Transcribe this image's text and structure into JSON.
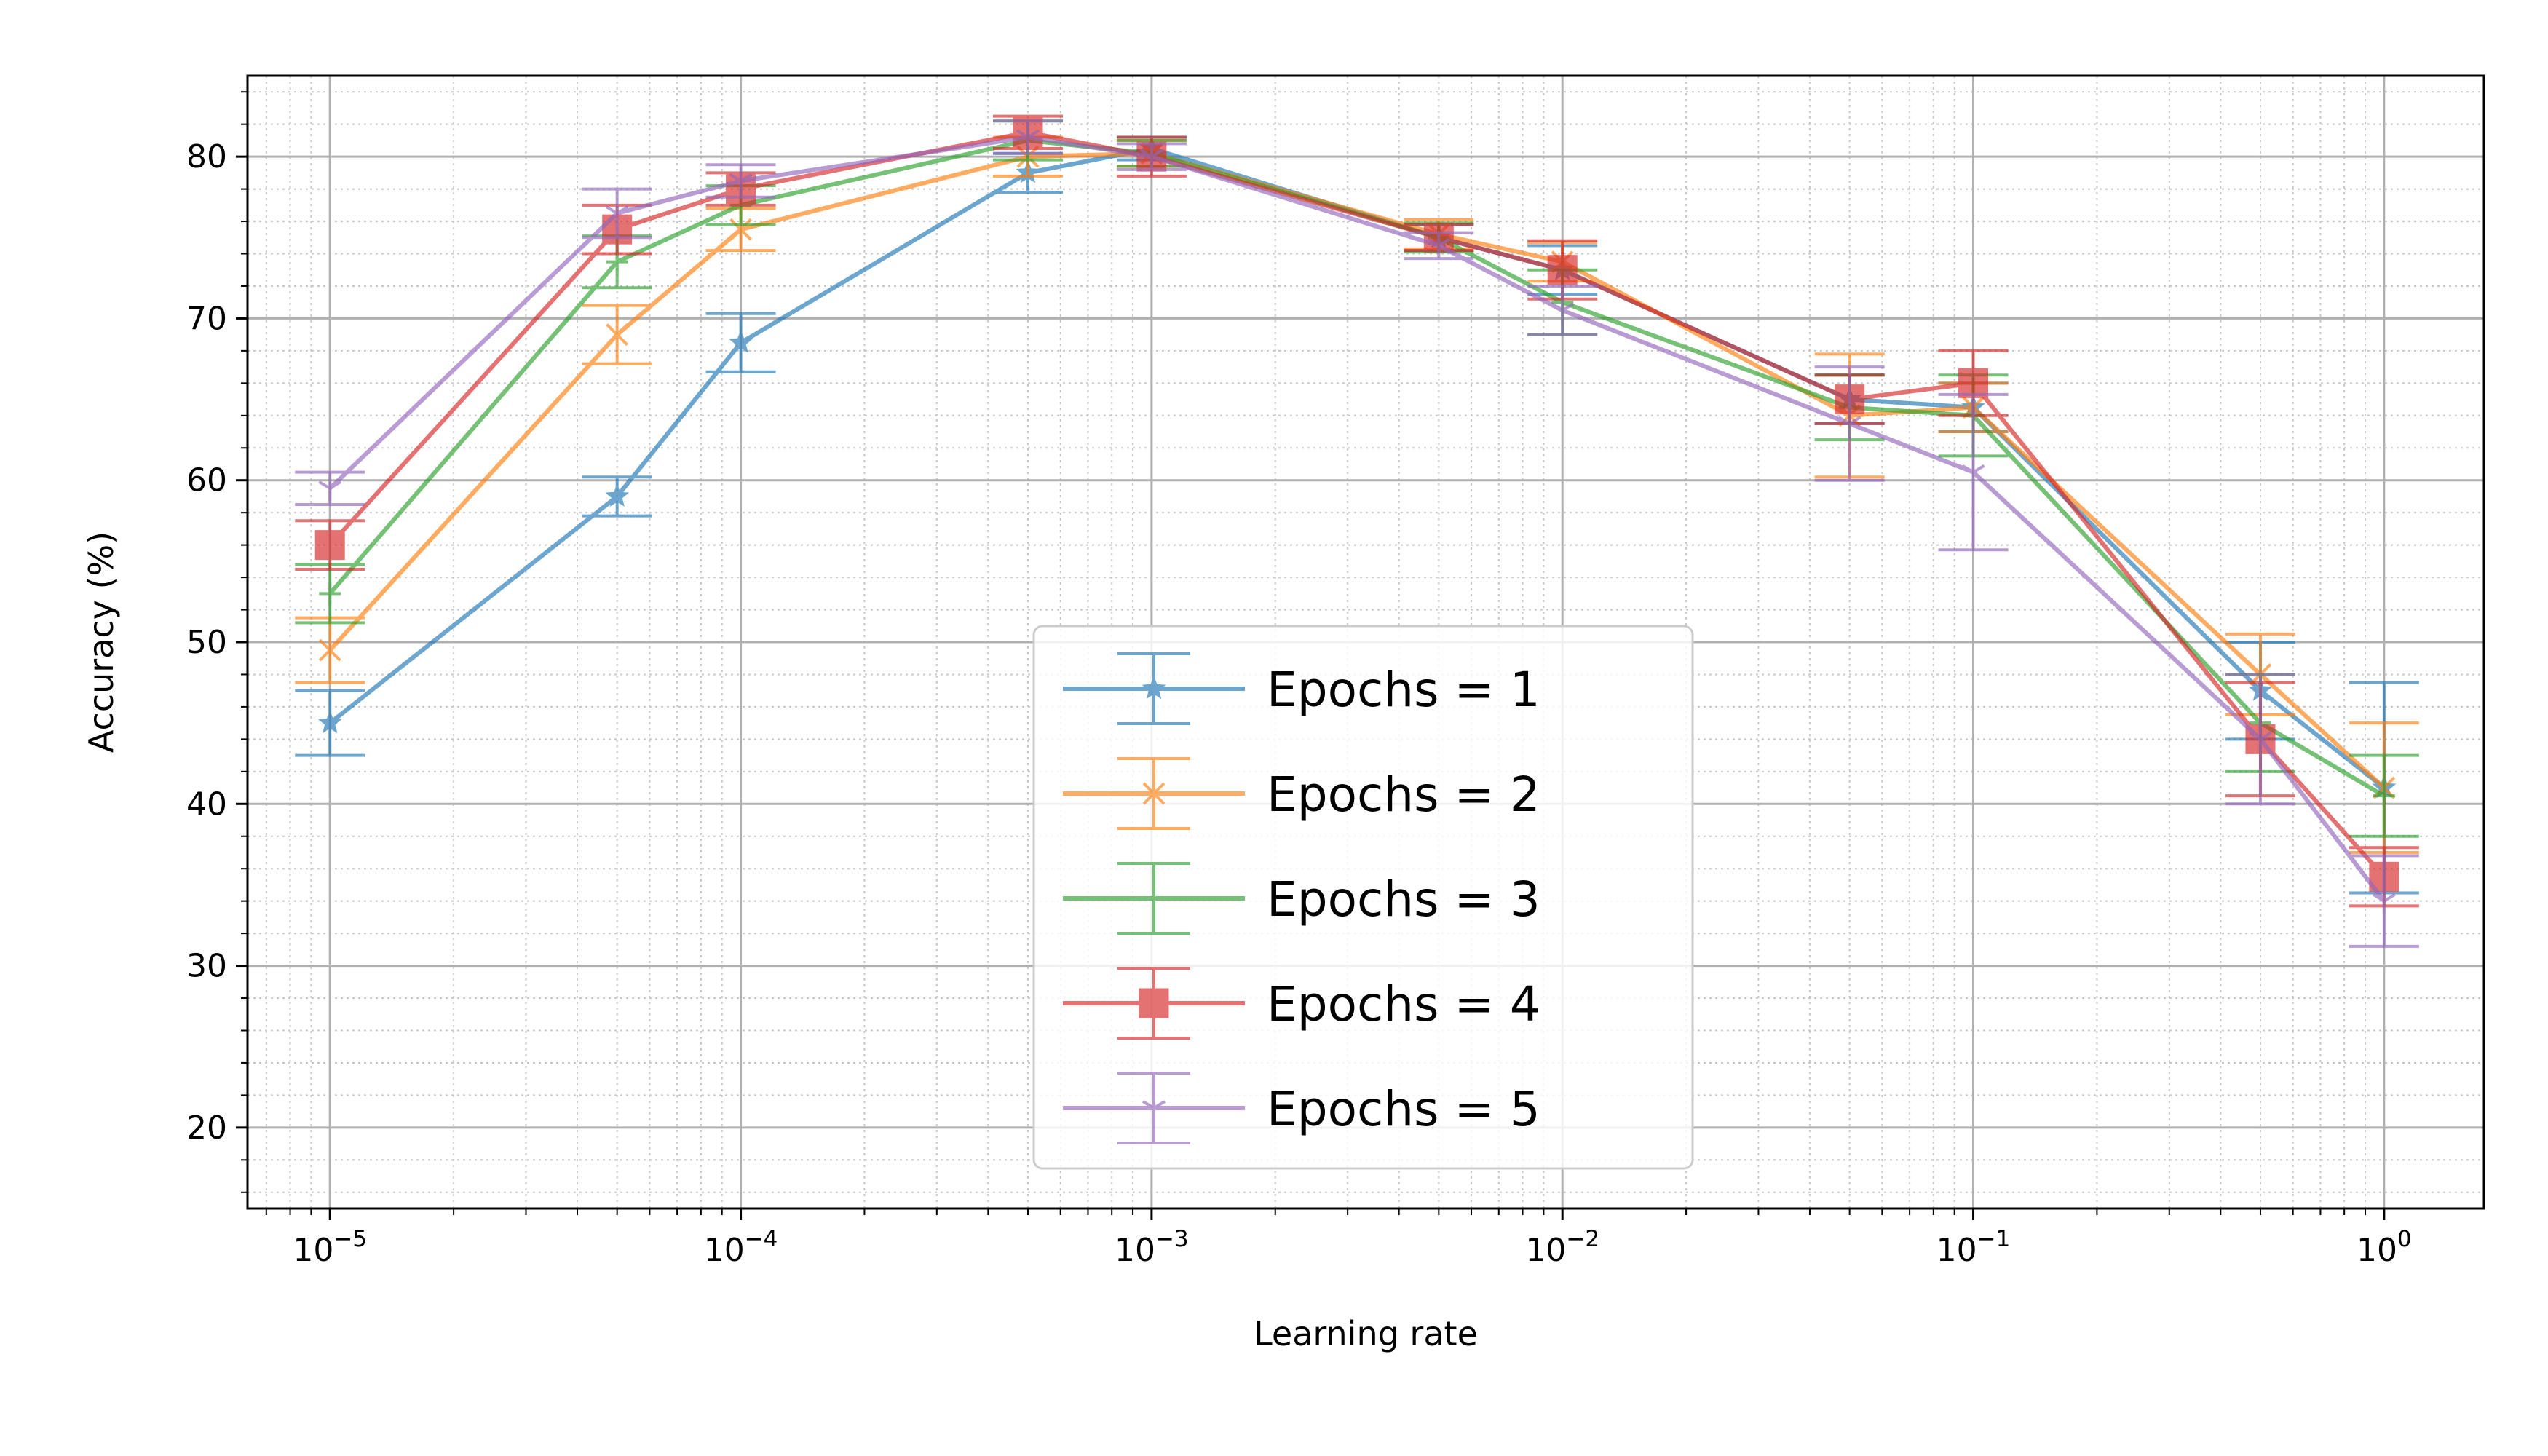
{
  "chart_data": {
    "type": "line",
    "xlabel": "Learning rate",
    "ylabel": "Accuracy (%)",
    "xscale": "log",
    "x_axis_range": [
      6.3e-06,
      1.75
    ],
    "y_axis_range": [
      15,
      85
    ],
    "x_ticks": [
      1e-05,
      0.0001,
      0.001,
      0.01,
      0.1,
      1
    ],
    "x_tick_labels": [
      {
        "base": "10",
        "exp": "−5"
      },
      {
        "base": "10",
        "exp": "−4"
      },
      {
        "base": "10",
        "exp": "−3"
      },
      {
        "base": "10",
        "exp": "−2"
      },
      {
        "base": "10",
        "exp": "−1"
      },
      {
        "base": "10",
        "exp": "0"
      }
    ],
    "y_ticks": [
      20,
      30,
      40,
      50,
      60,
      70,
      80
    ],
    "y_tick_labels": [
      "20",
      "30",
      "40",
      "50",
      "60",
      "70",
      "80"
    ],
    "grid": true,
    "legend_position": "bottom-center",
    "x": [
      1e-05,
      5e-05,
      0.0001,
      0.0005,
      0.001,
      0.005,
      0.01,
      0.05,
      0.1,
      0.5,
      1
    ],
    "series": [
      {
        "name": "Epochs = 1",
        "marker": "star",
        "color": "#1f77b4",
        "values": [
          45,
          59,
          68.5,
          79,
          80.5,
          75,
          73,
          65,
          64.5,
          47,
          41
        ],
        "errors": [
          2,
          1.2,
          1.8,
          1.2,
          0.7,
          0.8,
          1.5,
          1.5,
          1.5,
          3,
          6.5
        ]
      },
      {
        "name": "Epochs = 2",
        "marker": "x",
        "color": "#ff7f0e",
        "values": [
          49.5,
          69,
          75.5,
          80,
          80.2,
          75.2,
          73.5,
          64,
          64.5,
          48,
          41
        ],
        "errors": [
          2,
          1.8,
          1.3,
          1.2,
          0.8,
          0.9,
          1.2,
          3.8,
          1.5,
          2.5,
          4
        ]
      },
      {
        "name": "Epochs = 3",
        "marker": "plus",
        "color": "#2ca02c",
        "values": [
          53,
          73.5,
          77,
          81,
          80.2,
          75,
          71,
          64.5,
          64,
          45,
          40.5
        ],
        "errors": [
          1.8,
          1.6,
          1.2,
          1.2,
          0.8,
          0.9,
          2,
          2,
          2.5,
          3,
          2.5
        ]
      },
      {
        "name": "Epochs = 4",
        "marker": "square",
        "color": "#d62728",
        "values": [
          56,
          75.5,
          78,
          81.5,
          80,
          75,
          73,
          65,
          66,
          44,
          35.5
        ],
        "errors": [
          1.5,
          1.5,
          1,
          1,
          1.2,
          0.8,
          1.8,
          1.5,
          2,
          3.5,
          1.8
        ]
      },
      {
        "name": "Epochs = 5",
        "marker": "tri_down",
        "color": "#9467bd",
        "values": [
          59.5,
          76.5,
          78.5,
          81.2,
          80,
          74.5,
          70.5,
          63.5,
          60.5,
          44,
          34
        ],
        "errors": [
          1,
          1.5,
          1,
          1,
          0.8,
          0.8,
          1.5,
          3.5,
          4.8,
          4,
          2.8
        ]
      }
    ]
  }
}
